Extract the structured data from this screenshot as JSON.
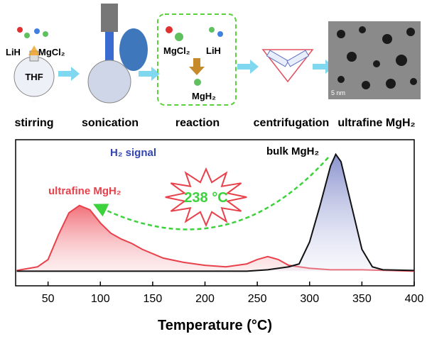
{
  "schematic": {
    "steps": [
      "stirring",
      "sonication",
      "reaction",
      "centrifugation",
      "ultrafine MgH₂"
    ],
    "stirring": {
      "reagent_1": "LiH",
      "reagent_2": "MgCl₂",
      "solvent": "THF"
    },
    "reaction": {
      "reagent_1": "MgCl₂",
      "reagent_2": "LiH",
      "product": "MgH₂"
    },
    "scale_bar": "5 nm"
  },
  "chart_data": {
    "type": "line",
    "x_label": "Temperature (°C)",
    "annotations": {
      "signal": "H₂ signal",
      "bulk": "bulk MgH₂",
      "ultrafine": "ultrafine MgH₂",
      "shift": "238 °C"
    },
    "xlim": [
      19,
      400
    ],
    "xticks": [
      50,
      100,
      150,
      200,
      250,
      300,
      350,
      400
    ],
    "ylim": [
      0,
      100
    ],
    "series": [
      {
        "name": "ultrafine MgH₂",
        "color": "#e8414b",
        "x": [
          20,
          40,
          50,
          60,
          70,
          80,
          90,
          100,
          110,
          120,
          130,
          140,
          160,
          180,
          200,
          220,
          240,
          250,
          260,
          270,
          280,
          300,
          320,
          350,
          400
        ],
        "values": [
          10.5,
          13,
          18,
          35,
          50,
          55,
          52,
          43,
          36,
          32,
          29,
          25,
          19,
          16,
          14,
          13,
          15,
          18,
          20,
          18,
          14,
          12,
          11,
          11,
          10
        ]
      },
      {
        "name": "bulk MgH₂",
        "color": "#111111",
        "x": [
          20,
          200,
          240,
          260,
          280,
          290,
          300,
          310,
          320,
          325,
          330,
          340,
          350,
          360,
          370,
          400
        ],
        "values": [
          10,
          10,
          10,
          11,
          13,
          15,
          30,
          55,
          82,
          90,
          85,
          55,
          25,
          13,
          11,
          10.5
        ]
      }
    ]
  }
}
